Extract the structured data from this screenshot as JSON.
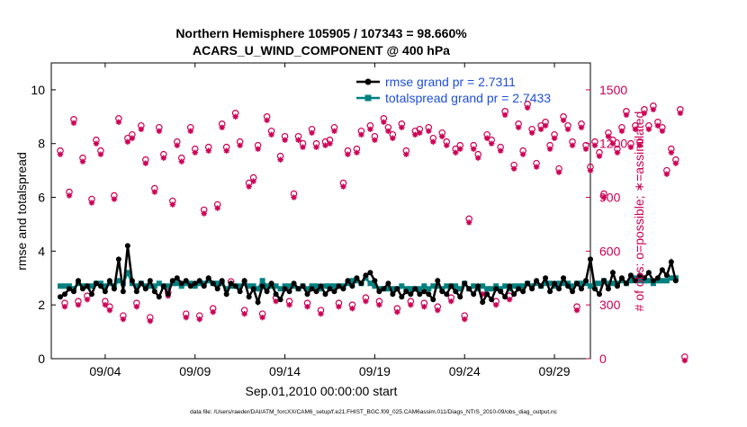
{
  "chart_data": {
    "type": "line",
    "title_line1": "Northern Hemisphere 105905 / 107343 = 98.660%",
    "title_line2": "ACARS_U_WIND_COMPONENT @ 400 hPa",
    "xlabel": "Sep.01,2010 00:00:00 start",
    "ylabel_left": "rmse and totalspread",
    "ylabel_right": "# of obs: o=possible; ∗=assimilated",
    "footer": "data file: /Users/raeder/DAI/ATM_forcXX/CAM6_setup/f.e21.FHIST_BGC.f09_025.CAM6assim.011/Diags_NTrS_2010-09/obs_diag_output.nc",
    "x_range_days": [
      0.5,
      30.5
    ],
    "ylim_left": [
      0,
      11
    ],
    "ylim_right": [
      0,
      1650
    ],
    "x_ticks": [
      {
        "day": 3.5,
        "label": "09/04"
      },
      {
        "day": 8.5,
        "label": "09/09"
      },
      {
        "day": 13.5,
        "label": "09/14"
      },
      {
        "day": 18.5,
        "label": "09/19"
      },
      {
        "day": 23.5,
        "label": "09/24"
      },
      {
        "day": 28.5,
        "label": "09/29"
      }
    ],
    "y_ticks_left": [
      "0",
      "2",
      "4",
      "6",
      "8",
      "10"
    ],
    "y_tick_values_left": [
      0,
      2,
      4,
      6,
      8,
      10
    ],
    "y_ticks_right": [
      "0",
      "300",
      "600",
      "900",
      "1200",
      "1500"
    ],
    "y_tick_values_right": [
      0,
      300,
      600,
      900,
      1200,
      1500
    ],
    "grid": false,
    "legend_position": "top-right",
    "colors": {
      "rmse": "#000000",
      "totalspread": "#008080",
      "obs": "#cc0055"
    },
    "series": [
      {
        "name": "rmse",
        "legend": "rmse grand pr = 2.7311",
        "step_hours": 6,
        "values": [
          2.3,
          2.4,
          2.6,
          2.5,
          2.9,
          2.6,
          2.7,
          2.4,
          2.8,
          2.7,
          2.5,
          2.9,
          2.6,
          3.7,
          2.5,
          4.2,
          2.9,
          2.5,
          2.8,
          2.6,
          2.9,
          2.5,
          2.3,
          2.7,
          2.4,
          2.9,
          3.0,
          2.8,
          2.9,
          2.7,
          2.8,
          2.9,
          2.7,
          3.0,
          2.8,
          2.6,
          2.9,
          2.4,
          2.8,
          2.7,
          2.5,
          2.9,
          2.3,
          2.6,
          2.1,
          2.7,
          2.5,
          2.8,
          2.4,
          2.2,
          2.6,
          2.5,
          2.8,
          2.6,
          2.7,
          2.4,
          2.6,
          2.5,
          2.7,
          2.4,
          2.6,
          2.5,
          2.7,
          2.6,
          2.9,
          2.7,
          3.0,
          2.8,
          3.1,
          3.2,
          2.9,
          2.5,
          2.6,
          2.8,
          2.4,
          2.6,
          2.3,
          2.5,
          2.4,
          2.6,
          2.4,
          2.5,
          2.4,
          2.2,
          2.9,
          2.5,
          2.4,
          2.7,
          2.5,
          2.3,
          2.8,
          2.6,
          2.4,
          2.7,
          2.1,
          2.4,
          2.2,
          2.6,
          2.5,
          2.3,
          2.7,
          2.4,
          2.6,
          2.5,
          2.8,
          2.6,
          2.9,
          2.7,
          3.0,
          2.5,
          2.8,
          2.6,
          3.0,
          2.7,
          2.5,
          2.8,
          2.6,
          2.9,
          3.7,
          2.6,
          2.4,
          2.9,
          2.6,
          3.2,
          2.7,
          3.0,
          2.8,
          3.1,
          2.9,
          3.1,
          3.0,
          3.2,
          2.9,
          3.0,
          3.3,
          3.1,
          3.6,
          2.9
        ]
      },
      {
        "name": "totalspread",
        "legend": "totalspread grand pr = 2.7433",
        "step_hours": 6,
        "values": [
          2.7,
          2.7,
          2.7,
          2.6,
          2.8,
          2.7,
          2.7,
          2.7,
          2.8,
          2.8,
          2.7,
          2.8,
          2.7,
          2.9,
          2.8,
          3.2,
          2.8,
          2.7,
          2.8,
          2.7,
          2.7,
          2.7,
          2.8,
          2.7,
          2.7,
          2.8,
          2.8,
          2.7,
          2.8,
          2.8,
          2.7,
          2.8,
          2.8,
          2.9,
          2.8,
          2.8,
          2.8,
          2.6,
          2.7,
          2.7,
          2.7,
          2.8,
          2.7,
          2.7,
          2.6,
          2.9,
          2.7,
          2.7,
          2.7,
          2.6,
          2.7,
          2.7,
          2.7,
          2.6,
          2.7,
          2.6,
          2.7,
          2.7,
          2.6,
          2.7,
          2.7,
          2.7,
          2.7,
          2.7,
          2.8,
          2.9,
          2.9,
          2.8,
          3.0,
          2.8,
          2.7,
          2.6,
          2.6,
          2.6,
          2.6,
          2.6,
          2.7,
          2.6,
          2.6,
          2.6,
          2.6,
          2.7,
          2.6,
          2.7,
          2.7,
          2.6,
          2.7,
          2.7,
          2.7,
          2.6,
          2.8,
          2.6,
          2.7,
          2.6,
          2.7,
          2.6,
          2.6,
          2.7,
          2.6,
          2.7,
          2.6,
          2.7,
          2.7,
          2.7,
          2.8,
          2.7,
          2.8,
          2.7,
          2.8,
          2.8,
          2.7,
          2.8,
          2.8,
          2.8,
          2.7,
          2.8,
          2.8,
          2.8,
          2.7,
          2.8,
          2.8,
          2.9,
          2.8,
          2.8,
          2.8,
          2.9,
          2.8,
          2.9,
          3.0,
          2.9,
          2.9,
          2.9,
          2.8,
          2.9,
          2.9,
          2.9,
          3.0,
          3.0
        ]
      },
      {
        "name": "obs",
        "legend": "",
        "step_hours": 6,
        "values": [
          1150,
          300,
          920,
          1325,
          310,
          1110,
          340,
          880,
          1210,
          1150,
          310,
          280,
          900,
          1330,
          230,
          1220,
          1240,
          300,
          1290,
          1100,
          220,
          940,
          1280,
          1130,
          360,
          870,
          1200,
          1110,
          240,
          1280,
          1160,
          230,
          820,
          1170,
          270,
          850,
          1300,
          1170,
          420,
          1360,
          1200,
          260,
          970,
          1000,
          1180,
          240,
          1340,
          1260,
          330,
          1120,
          1230,
          310,
          910,
          1230,
          1190,
          300,
          1270,
          1190,
          260,
          1200,
          1210,
          1280,
          300,
          970,
          1150,
          290,
          1160,
          1260,
          330,
          1290,
          1230,
          310,
          1330,
          1280,
          1240,
          270,
          1300,
          1150,
          310,
          1260,
          1270,
          300,
          1280,
          1220,
          280,
          1250,
          1200,
          330,
          1160,
          1180,
          230,
          770,
          1180,
          1130,
          370,
          1240,
          1210,
          310,
          1170,
          1370,
          340,
          1070,
          1300,
          1150,
          1410,
          1270,
          1080,
          1290,
          1310,
          1180,
          1240,
          1050,
          1340,
          1290,
          1200,
          280,
          1300,
          1180,
          1060,
          1200,
          1140,
          910,
          1250,
          1210,
          1160,
          1280,
          1370,
          1190,
          1290,
          1200,
          1380,
          1290,
          1400,
          1310,
          1280,
          1040,
          1160,
          1100,
          1380,
          0
        ]
      }
    ]
  }
}
